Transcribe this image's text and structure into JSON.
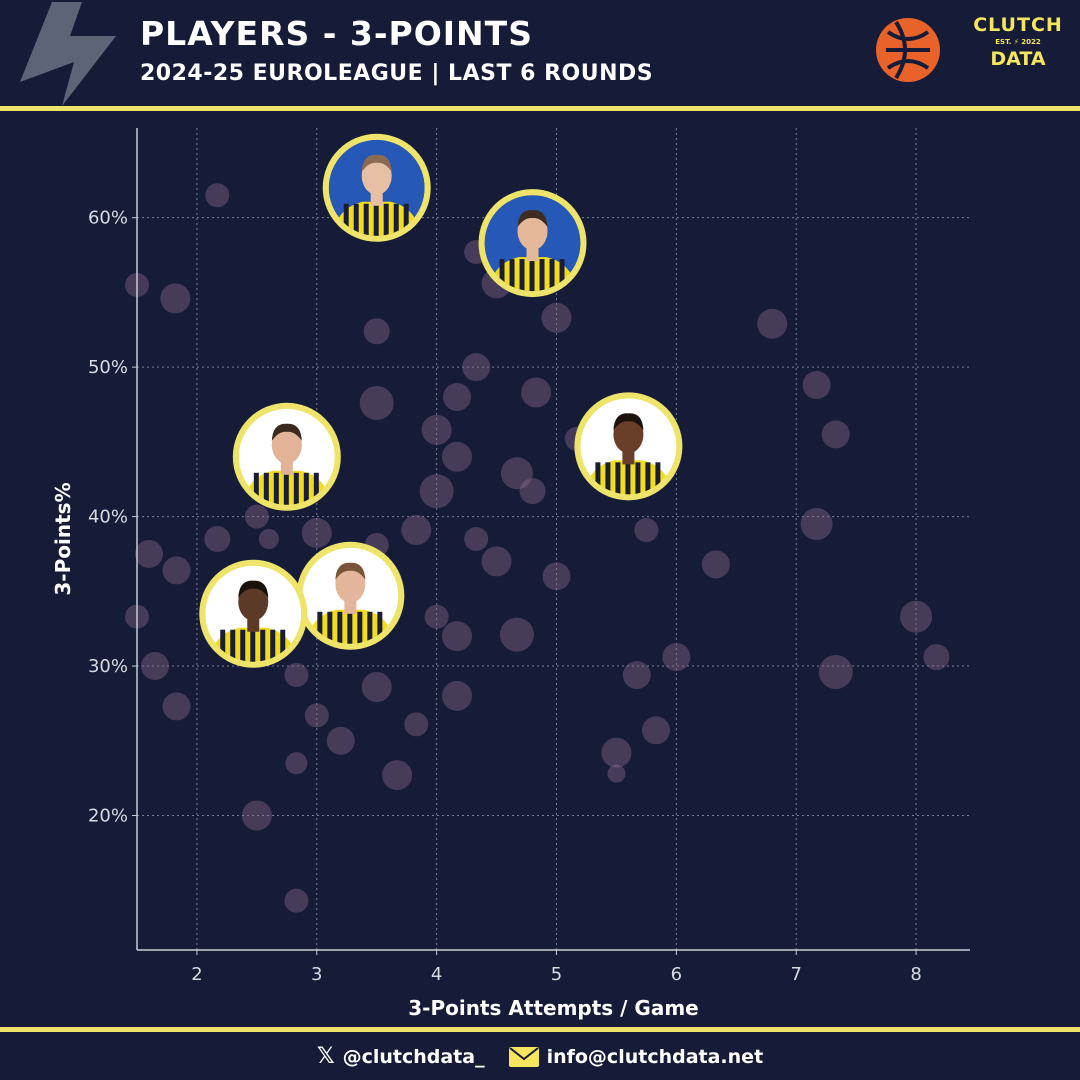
{
  "header": {
    "title": "PLAYERS - 3-POINTS",
    "subtitle": "2024-25 EUROLEAGUE | LAST 6 ROUNDS",
    "brand": {
      "top": "CLUTCH",
      "est": "EST.",
      "year": "2022",
      "bottom": "DATA"
    }
  },
  "footer": {
    "twitter": "@clutchdata_",
    "email": "info@clutchdata.net"
  },
  "colors": {
    "background": "#161c38",
    "accent_yellow": "#efe46a",
    "bubble": "#8a6a8a",
    "euroleague_orange": "#e8622a"
  },
  "chart_data": {
    "type": "scatter",
    "xlabel": "3-Points Attempts / Game",
    "ylabel": "3-Points%",
    "xlim": [
      1.5,
      8.45
    ],
    "ylim": [
      11,
      66
    ],
    "xticks": [
      2,
      3,
      4,
      5,
      6,
      7,
      8
    ],
    "yticks": [
      20,
      30,
      40,
      50,
      60
    ],
    "ytick_labels": [
      "20%",
      "30%",
      "40%",
      "50%",
      "60%"
    ],
    "grid": true,
    "points": [
      {
        "x": 1.5,
        "y": 55.5,
        "s": 12
      },
      {
        "x": 1.5,
        "y": 33.3,
        "s": 12
      },
      {
        "x": 1.6,
        "y": 37.5,
        "s": 14
      },
      {
        "x": 1.65,
        "y": 30.0,
        "s": 14
      },
      {
        "x": 1.82,
        "y": 54.6,
        "s": 15
      },
      {
        "x": 1.83,
        "y": 36.4,
        "s": 14
      },
      {
        "x": 1.83,
        "y": 27.3,
        "s": 14
      },
      {
        "x": 2.17,
        "y": 61.5,
        "s": 12
      },
      {
        "x": 2.17,
        "y": 38.5,
        "s": 13
      },
      {
        "x": 2.5,
        "y": 40.0,
        "s": 12
      },
      {
        "x": 2.5,
        "y": 20.0,
        "s": 15
      },
      {
        "x": 2.6,
        "y": 38.5,
        "s": 10
      },
      {
        "x": 2.67,
        "y": 33.3,
        "s": 10
      },
      {
        "x": 2.83,
        "y": 29.4,
        "s": 12
      },
      {
        "x": 2.83,
        "y": 23.5,
        "s": 11
      },
      {
        "x": 2.83,
        "y": 14.3,
        "s": 12
      },
      {
        "x": 3.0,
        "y": 38.9,
        "s": 15
      },
      {
        "x": 3.0,
        "y": 26.7,
        "s": 12
      },
      {
        "x": 3.17,
        "y": 32.0,
        "s": 12
      },
      {
        "x": 3.2,
        "y": 25.0,
        "s": 14
      },
      {
        "x": 3.5,
        "y": 52.4,
        "s": 13
      },
      {
        "x": 3.5,
        "y": 47.6,
        "s": 17
      },
      {
        "x": 3.5,
        "y": 38.1,
        "s": 12
      },
      {
        "x": 3.5,
        "y": 28.6,
        "s": 15
      },
      {
        "x": 3.67,
        "y": 22.7,
        "s": 15
      },
      {
        "x": 3.83,
        "y": 39.1,
        "s": 15
      },
      {
        "x": 3.83,
        "y": 26.1,
        "s": 12
      },
      {
        "x": 4.0,
        "y": 45.8,
        "s": 15
      },
      {
        "x": 4.0,
        "y": 41.7,
        "s": 17
      },
      {
        "x": 4.0,
        "y": 33.3,
        "s": 12
      },
      {
        "x": 4.17,
        "y": 48.0,
        "s": 14
      },
      {
        "x": 4.17,
        "y": 44.0,
        "s": 15
      },
      {
        "x": 4.17,
        "y": 32.0,
        "s": 15
      },
      {
        "x": 4.17,
        "y": 28.0,
        "s": 15
      },
      {
        "x": 4.33,
        "y": 57.7,
        "s": 12
      },
      {
        "x": 4.33,
        "y": 50.0,
        "s": 14
      },
      {
        "x": 4.33,
        "y": 38.5,
        "s": 12
      },
      {
        "x": 4.5,
        "y": 55.6,
        "s": 15
      },
      {
        "x": 4.5,
        "y": 37.0,
        "s": 15
      },
      {
        "x": 4.67,
        "y": 42.9,
        "s": 16
      },
      {
        "x": 4.67,
        "y": 32.1,
        "s": 17
      },
      {
        "x": 4.83,
        "y": 48.3,
        "s": 15
      },
      {
        "x": 4.8,
        "y": 41.7,
        "s": 13
      },
      {
        "x": 5.0,
        "y": 53.3,
        "s": 15
      },
      {
        "x": 5.0,
        "y": 36.0,
        "s": 14
      },
      {
        "x": 5.17,
        "y": 45.2,
        "s": 12
      },
      {
        "x": 5.5,
        "y": 24.2,
        "s": 15
      },
      {
        "x": 5.5,
        "y": 22.8,
        "s": 9
      },
      {
        "x": 5.67,
        "y": 29.4,
        "s": 14
      },
      {
        "x": 5.75,
        "y": 39.1,
        "s": 12
      },
      {
        "x": 5.83,
        "y": 25.7,
        "s": 14
      },
      {
        "x": 6.0,
        "y": 30.6,
        "s": 14
      },
      {
        "x": 6.33,
        "y": 36.8,
        "s": 14
      },
      {
        "x": 6.8,
        "y": 52.9,
        "s": 15
      },
      {
        "x": 7.17,
        "y": 48.8,
        "s": 14
      },
      {
        "x": 7.17,
        "y": 39.5,
        "s": 16
      },
      {
        "x": 7.33,
        "y": 45.5,
        "s": 14
      },
      {
        "x": 7.33,
        "y": 29.6,
        "s": 17
      },
      {
        "x": 8.0,
        "y": 33.3,
        "s": 16
      },
      {
        "x": 8.17,
        "y": 30.6,
        "s": 13
      }
    ],
    "highlighted_players": [
      {
        "x": 3.5,
        "y": 62.0,
        "bg": "#2659b7",
        "skin": "#e7bfa4",
        "hair": "#8a6a52"
      },
      {
        "x": 4.8,
        "y": 58.3,
        "bg": "#2659b7",
        "skin": "#e5b89a",
        "hair": "#3c2c22"
      },
      {
        "x": 2.75,
        "y": 44.0,
        "bg": "#ffffff",
        "skin": "#e2b396",
        "hair": "#3b2a20"
      },
      {
        "x": 5.6,
        "y": 44.7,
        "bg": "#ffffff",
        "skin": "#6a3f2a",
        "hair": "#1c120e"
      },
      {
        "x": 3.28,
        "y": 34.7,
        "bg": "#ffffff",
        "skin": "#e3b69c",
        "hair": "#7a5438"
      },
      {
        "x": 2.47,
        "y": 33.5,
        "bg": "#ffffff",
        "skin": "#5d3a28",
        "hair": "#1a110c"
      }
    ]
  }
}
